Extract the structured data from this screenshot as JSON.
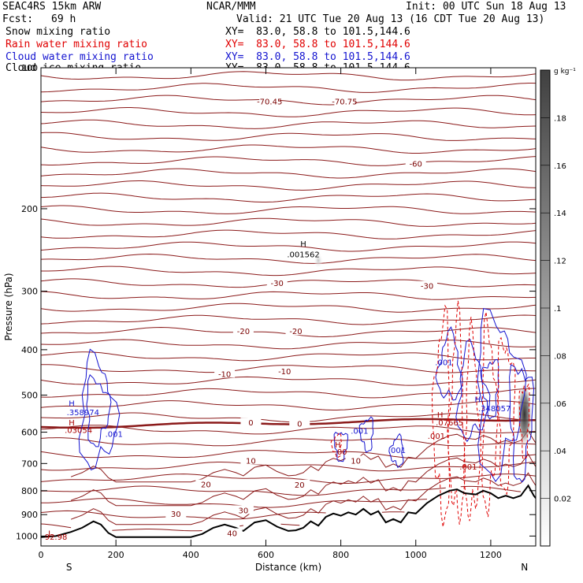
{
  "header": {
    "model": "SEAC4RS 15km ARW",
    "org": "NCAR/MMM",
    "init": "Init: 00 UTC Sun 18 Aug 13",
    "fcst_label": "Fcst:",
    "fcst_value": "69 h",
    "valid": "Valid: 21 UTC Tue 20 Aug 13 (16 CDT Tue 20 Aug 13)"
  },
  "fields": [
    {
      "name": "Snow mixing ratio",
      "xy": "XY=  83.0, 58.8 to 101.5,144.6",
      "color": "#000000"
    },
    {
      "name": "Rain water mixing ratio",
      "xy": "XY=  83.0, 58.8 to 101.5,144.6",
      "color": "#e00000"
    },
    {
      "name": "Cloud water mixing ratio",
      "xy": "XY=  83.0, 58.8 to 101.5,144.6",
      "color": "#1515d0"
    },
    {
      "name": "Cloud ice mixing ratio",
      "xy": "XY=  83.0, 58.8 to 101.5,144.6",
      "color": "#000000"
    }
  ],
  "chart_data": {
    "type": "cross-section",
    "xlabel": "Distance (km)",
    "ylabel": "Pressure (hPa)",
    "xlim": [
      0,
      1320
    ],
    "ylim": [
      1050,
      100
    ],
    "x_ticks": [
      0,
      200,
      400,
      600,
      800,
      1000,
      1200
    ],
    "y_ticks": [
      1000,
      900,
      800,
      700,
      600,
      500,
      400,
      300,
      200,
      100
    ],
    "y_scale": "log",
    "x_end_labels": {
      "left": "S",
      "right": "N"
    },
    "colorbar": {
      "unit": "g kg⁻¹",
      "ticks": [
        "0.02",
        ".04",
        ".06",
        ".08",
        ".1",
        ".12",
        ".14",
        ".16",
        ".18"
      ],
      "tick_values": [
        0.02,
        0.04,
        0.06,
        0.08,
        0.1,
        0.12,
        0.14,
        0.16,
        0.18
      ],
      "min": 0,
      "max": 0.2
    },
    "temperature_labels": [
      {
        "text": "-70.45",
        "x": 610,
        "p": 118
      },
      {
        "text": "-70.75",
        "x": 810,
        "p": 118
      },
      {
        "text": "-60",
        "x": 1000,
        "p": 160
      },
      {
        "text": "-30",
        "x": 630,
        "p": 288
      },
      {
        "text": "-30",
        "x": 1030,
        "p": 292
      },
      {
        "text": "-20",
        "x": 540,
        "p": 365
      },
      {
        "text": "-20",
        "x": 680,
        "p": 365
      },
      {
        "text": "-10",
        "x": 490,
        "p": 450
      },
      {
        "text": "-10",
        "x": 650,
        "p": 444
      },
      {
        "text": "0",
        "x": 560,
        "p": 572
      },
      {
        "text": "0",
        "x": 690,
        "p": 575
      },
      {
        "text": "10",
        "x": 560,
        "p": 690
      },
      {
        "text": "10",
        "x": 840,
        "p": 690
      },
      {
        "text": "20",
        "x": 440,
        "p": 775
      },
      {
        "text": "20",
        "x": 690,
        "p": 776
      },
      {
        "text": "30",
        "x": 540,
        "p": 880
      },
      {
        "text": "30",
        "x": 360,
        "p": 895
      },
      {
        "text": "40",
        "x": 510,
        "p": 985
      }
    ],
    "extrema_labels": [
      {
        "text": "H",
        "x": 700,
        "p": 237,
        "color": "#000000"
      },
      {
        "text": ".001562",
        "x": 700,
        "p": 250,
        "color": "#000000"
      },
      {
        "text": "H",
        "x": 82,
        "p": 520,
        "color": "#1515d0"
      },
      {
        "text": ".358974",
        "x": 112,
        "p": 543,
        "color": "#1515d0"
      },
      {
        "text": "H",
        "x": 82,
        "p": 572,
        "color": "#aa0000"
      },
      {
        "text": ".03054",
        "x": 100,
        "p": 593,
        "color": "#aa0000"
      },
      {
        "text": ".001",
        "x": 195,
        "p": 604,
        "color": "#1515d0"
      },
      {
        "text": "H",
        "x": 792,
        "p": 637,
        "color": "#aa0000"
      },
      {
        "text": ".00",
        "x": 800,
        "p": 660,
        "color": "#aa0000"
      },
      {
        "text": ".001",
        "x": 850,
        "p": 595,
        "color": "#1515d0"
      },
      {
        "text": ".001",
        "x": 950,
        "p": 655,
        "color": "#1515d0"
      },
      {
        "text": ".001",
        "x": 1075,
        "p": 425,
        "color": "#1515d0"
      },
      {
        "text": "H",
        "x": 1165,
        "p": 510,
        "color": "#1515d0"
      },
      {
        "text": ".348057",
        "x": 1210,
        "p": 533,
        "color": "#1515d0"
      },
      {
        "text": "H",
        "x": 1065,
        "p": 550,
        "color": "#aa0000"
      },
      {
        "text": ".07665",
        "x": 1090,
        "p": 572,
        "color": "#aa0000"
      },
      {
        "text": ".001",
        "x": 1055,
        "p": 610,
        "color": "#aa0000"
      },
      {
        "text": ".001",
        "x": 1140,
        "p": 710,
        "color": "#aa0000"
      },
      {
        "text": "L",
        "x": 25,
        "p": 985,
        "color": "#aa0000"
      },
      {
        "text": "92.98",
        "x": 40,
        "p": 1003,
        "color": "#aa0000"
      }
    ],
    "terrain": [
      [
        0,
        1005
      ],
      [
        40,
        1000
      ],
      [
        80,
        980
      ],
      [
        110,
        960
      ],
      [
        140,
        930
      ],
      [
        160,
        945
      ],
      [
        180,
        985
      ],
      [
        200,
        1005
      ],
      [
        300,
        1005
      ],
      [
        400,
        1005
      ],
      [
        430,
        990
      ],
      [
        460,
        960
      ],
      [
        490,
        945
      ],
      [
        520,
        960
      ],
      [
        540,
        975
      ],
      [
        570,
        935
      ],
      [
        600,
        925
      ],
      [
        630,
        955
      ],
      [
        660,
        975
      ],
      [
        680,
        972
      ],
      [
        700,
        960
      ],
      [
        720,
        930
      ],
      [
        740,
        950
      ],
      [
        760,
        910
      ],
      [
        780,
        895
      ],
      [
        800,
        905
      ],
      [
        820,
        890
      ],
      [
        840,
        900
      ],
      [
        860,
        875
      ],
      [
        880,
        900
      ],
      [
        900,
        885
      ],
      [
        920,
        935
      ],
      [
        940,
        920
      ],
      [
        960,
        935
      ],
      [
        980,
        890
      ],
      [
        1000,
        895
      ],
      [
        1010,
        880
      ],
      [
        1030,
        850
      ],
      [
        1060,
        820
      ],
      [
        1090,
        800
      ],
      [
        1110,
        795
      ],
      [
        1130,
        810
      ],
      [
        1160,
        815
      ],
      [
        1180,
        800
      ],
      [
        1200,
        810
      ],
      [
        1220,
        830
      ],
      [
        1240,
        820
      ],
      [
        1260,
        830
      ],
      [
        1280,
        820
      ],
      [
        1300,
        780
      ],
      [
        1315,
        820
      ],
      [
        1320,
        830
      ]
    ]
  }
}
